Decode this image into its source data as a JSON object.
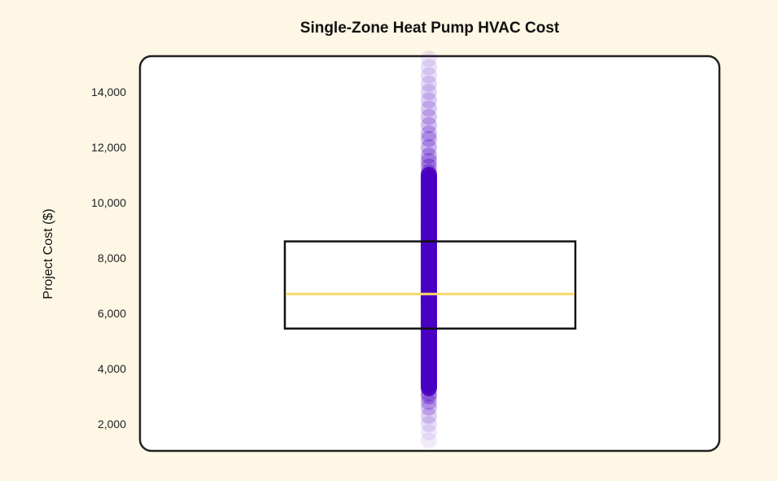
{
  "chart_data": {
    "type": "box",
    "title": "Single-Zone Heat Pump HVAC Cost",
    "xlabel": "",
    "ylabel": "Project Cost ($)",
    "ylim": [
      1000,
      15300
    ],
    "yticks": [
      2000,
      4000,
      6000,
      8000,
      10000,
      12000,
      14000
    ],
    "ytick_labels": [
      "2,000",
      "4,000",
      "6,000",
      "8,000",
      "10,000",
      "12,000",
      "14,000"
    ],
    "grid": false,
    "box": {
      "q1": 5450,
      "median": 6700,
      "q3": 8600
    },
    "points": [
      1400,
      1700,
      2000,
      2300,
      2600,
      2800,
      3000,
      3100,
      3300,
      3400,
      3500,
      3600,
      3700,
      3800,
      3900,
      4000,
      4100,
      4200,
      4300,
      4400,
      4500,
      4600,
      4700,
      4800,
      4900,
      5000,
      5100,
      5200,
      5300,
      5400,
      5500,
      5600,
      5700,
      5800,
      5900,
      6000,
      6100,
      6200,
      6300,
      6400,
      6500,
      6600,
      6700,
      6800,
      6900,
      7000,
      7100,
      7200,
      7300,
      7400,
      7500,
      7600,
      7700,
      7800,
      7900,
      8000,
      8100,
      8200,
      8300,
      8400,
      8500,
      8600,
      8700,
      8800,
      8900,
      9000,
      9100,
      9200,
      9300,
      9400,
      9500,
      9600,
      9700,
      9800,
      9900,
      10000,
      10100,
      10200,
      10300,
      10400,
      10500,
      10600,
      10700,
      10800,
      10900,
      11000,
      11100,
      11300,
      11500,
      11700,
      12000,
      12300,
      12500,
      12800,
      13100,
      13400,
      13700,
      14000,
      14300,
      14600,
      14900,
      15200
    ],
    "colors": {
      "points": "#4a00c2",
      "box": "#111111",
      "median": "#f8d86a",
      "background": "#fef7e6",
      "plot_bg": "#ffffff"
    }
  }
}
